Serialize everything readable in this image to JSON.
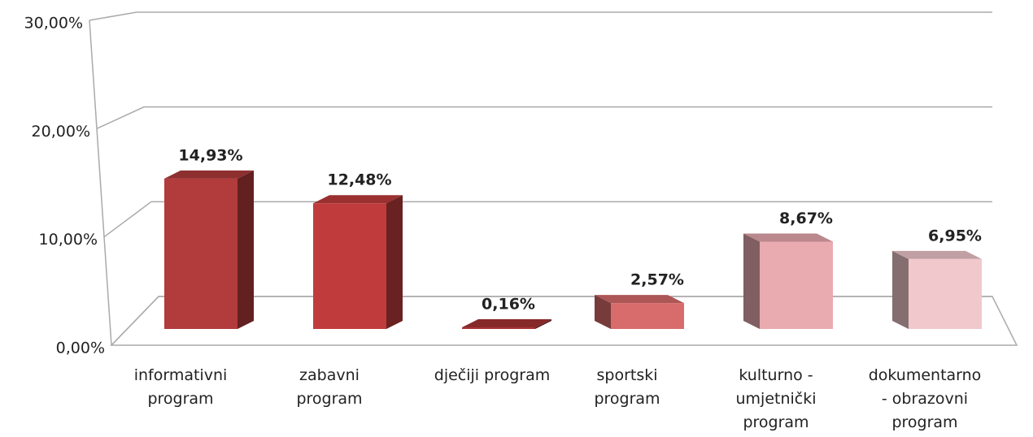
{
  "chart_data": {
    "type": "bar3d",
    "categories": [
      "informativni program",
      "zabavni program",
      "dječiji program",
      "sportski program",
      "kulturno - umjetnički program",
      "dokumentarno - obrazovni program"
    ],
    "values": [
      14.93,
      12.48,
      0.16,
      2.57,
      8.67,
      6.95
    ],
    "value_labels": [
      "14,93%",
      "12,48%",
      "0,16%",
      "2,57%",
      "8,67%",
      "6,95%"
    ],
    "colors": [
      "#b23b3b",
      "#c03c3c",
      "#a83333",
      "#d86b6b",
      "#e9aab0",
      "#f1c8cc"
    ],
    "ylim": [
      0,
      30
    ],
    "yticks": [
      {
        "value": 0,
        "label": "0,00%"
      },
      {
        "value": 10,
        "label": "10,00%"
      },
      {
        "value": 20,
        "label": "20,00%"
      },
      {
        "value": 30,
        "label": "30,00%"
      }
    ],
    "grid": true
  }
}
